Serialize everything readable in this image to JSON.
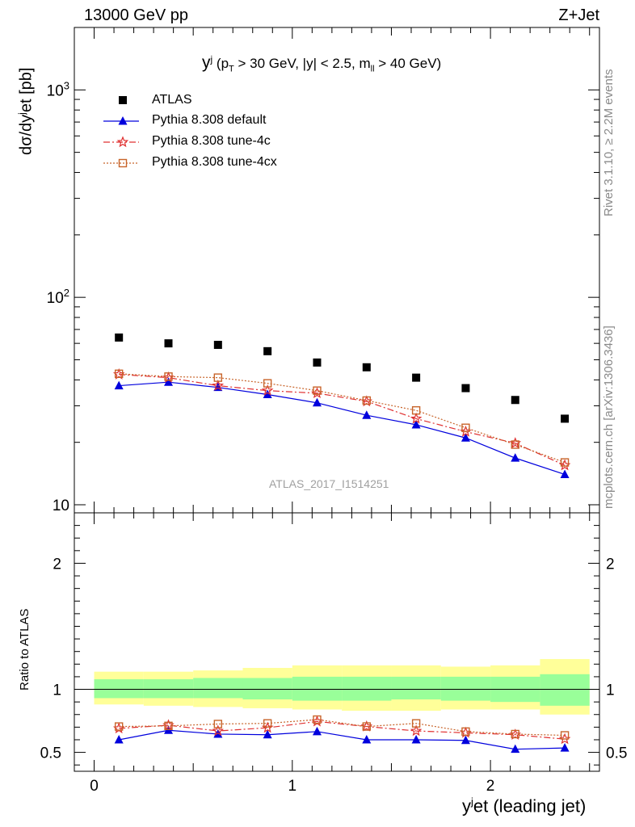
{
  "header": {
    "left": "13000 GeV pp",
    "right": "Z+Jet"
  },
  "side_texts": {
    "top": "Rivet 3.1.10, ≥ 2.2M events",
    "bottom": "mcplots.cern.ch [arXiv:1306.3436]"
  },
  "watermark": "ATLAS_2017_I1514251",
  "subtitle": {
    "main": "y",
    "sup": "j",
    "rest1": "(p",
    "sub_t": "T",
    "rest2": " > 30 GeV, |y| < 2.5, m",
    "sub_ll": "ll",
    "rest3": " > 40 GeV)"
  },
  "ylabel_main": {
    "a": "dσ/dy",
    "sup": "j",
    "b": "et [pb]"
  },
  "ylabel_ratio": "Ratio to ATLAS",
  "xlabel": {
    "a": "y",
    "sup": "j",
    "b": "et (leading jet)"
  },
  "legend": [
    "ATLAS",
    "Pythia 8.308 default",
    "Pythia 8.308 tune-4c",
    "Pythia 8.308 tune-4cx"
  ],
  "colors": {
    "atlas": "#000000",
    "default": "#0000dd",
    "tune4c": "#e03030",
    "tune4cx": "#c8642a",
    "band_inner": "#99ff99",
    "band_outer": "#ffff99"
  },
  "chart_data": [
    {
      "type": "scatter",
      "panel": "main",
      "ylabel": "dσ/dyjet [pb]",
      "yscale": "log",
      "ylim": [
        10,
        2000
      ],
      "xlim": [
        -0.1,
        2.55
      ],
      "yticks": [
        10,
        100,
        1000
      ],
      "ytick_labels": [
        "10",
        "10^2",
        "10^3"
      ],
      "x": [
        0.125,
        0.375,
        0.625,
        0.875,
        1.125,
        1.375,
        1.625,
        1.875,
        2.125,
        2.375
      ],
      "series": [
        {
          "name": "ATLAS",
          "values": [
            64,
            60,
            59,
            55,
            48.5,
            46,
            41,
            36.5,
            32,
            26
          ]
        },
        {
          "name": "Pythia 8.308 default",
          "values": [
            37.5,
            39,
            36.8,
            34,
            31,
            27,
            24.3,
            21,
            16.8,
            14
          ]
        },
        {
          "name": "Pythia 8.308 tune-4c",
          "values": [
            42.5,
            41,
            37.5,
            35.5,
            34.5,
            31.5,
            26,
            22.5,
            19.8,
            15.5
          ]
        },
        {
          "name": "Pythia 8.308 tune-4cx",
          "values": [
            42.8,
            41.5,
            41,
            38.5,
            35.5,
            31.8,
            28.5,
            23.5,
            19.5,
            16
          ]
        }
      ]
    },
    {
      "type": "scatter",
      "panel": "ratio",
      "ylabel": "Ratio to ATLAS",
      "xlabel": "yjet (leading jet)",
      "ylim": [
        0.35,
        2.4
      ],
      "xlim": [
        -0.1,
        2.55
      ],
      "yticks": [
        0.5,
        1,
        2
      ],
      "ytick_labels": [
        "0.5",
        "1",
        "2"
      ],
      "xticks": [
        0,
        1,
        2
      ],
      "xtick_labels": [
        "0",
        "1",
        "2"
      ],
      "x": [
        0.125,
        0.375,
        0.625,
        0.875,
        1.125,
        1.375,
        1.625,
        1.875,
        2.125,
        2.375
      ],
      "band_edges": [
        0,
        0.25,
        0.5,
        0.75,
        1.0,
        1.25,
        1.5,
        1.75,
        2.0,
        2.25,
        2.5
      ],
      "band_inner": [
        [
          0.93,
          1.08
        ],
        [
          0.93,
          1.08
        ],
        [
          0.93,
          1.09
        ],
        [
          0.92,
          1.09
        ],
        [
          0.91,
          1.1
        ],
        [
          0.91,
          1.1
        ],
        [
          0.92,
          1.1
        ],
        [
          0.91,
          1.1
        ],
        [
          0.9,
          1.1
        ],
        [
          0.87,
          1.12
        ]
      ],
      "band_outer": [
        [
          0.88,
          1.14
        ],
        [
          0.87,
          1.14
        ],
        [
          0.86,
          1.15
        ],
        [
          0.85,
          1.17
        ],
        [
          0.84,
          1.19
        ],
        [
          0.83,
          1.19
        ],
        [
          0.83,
          1.19
        ],
        [
          0.84,
          1.18
        ],
        [
          0.84,
          1.19
        ],
        [
          0.8,
          1.24
        ]
      ],
      "series": [
        {
          "name": "Pythia 8.308 default",
          "values": [
            0.6,
            0.675,
            0.645,
            0.64,
            0.665,
            0.6,
            0.6,
            0.595,
            0.525,
            0.535
          ]
        },
        {
          "name": "Pythia 8.308 tune-4c",
          "values": [
            0.69,
            0.715,
            0.67,
            0.695,
            0.745,
            0.705,
            0.67,
            0.655,
            0.64,
            0.605
          ]
        },
        {
          "name": "Pythia 8.308 tune-4cx",
          "values": [
            0.705,
            0.71,
            0.725,
            0.73,
            0.76,
            0.705,
            0.73,
            0.665,
            0.645,
            0.635
          ]
        }
      ]
    }
  ]
}
